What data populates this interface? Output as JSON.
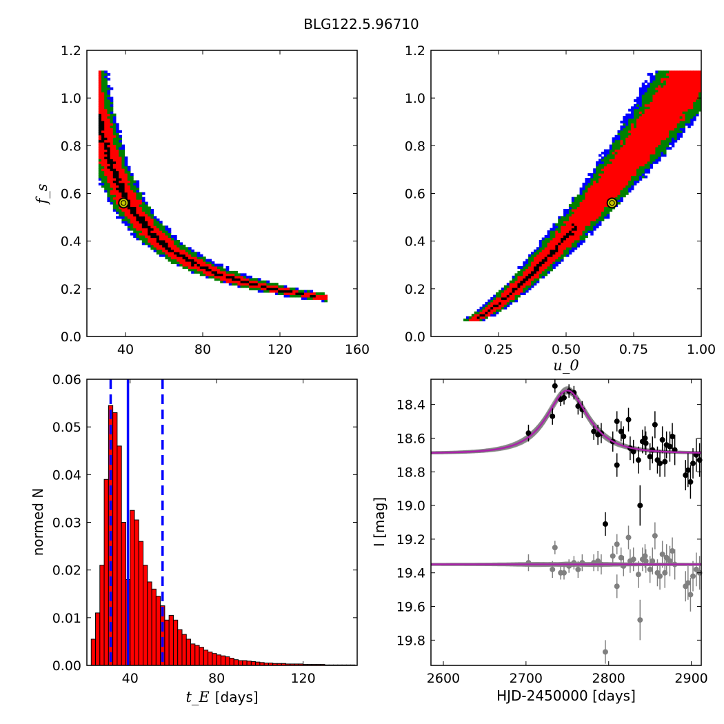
{
  "figure_title": "BLG122.5.96710",
  "colors": {
    "sigma1": "#000000",
    "sigma2": "#ff0000",
    "sigma3": "#008000",
    "sigma4": "#0000ff",
    "best_fit_marker": "#c8c800",
    "histogram_bar": "#ff0000",
    "histogram_edge": "#000000",
    "median_line": "#0000ff",
    "model_curve": "#aa22aa",
    "model_band": "#808080",
    "data_primary": "#000000",
    "data_residual": "#808080"
  },
  "chart_data": [
    {
      "id": "fs-vs-tE",
      "type": "heatmap",
      "xlabel": "",
      "ylabel": "f_s",
      "xlim": [
        20,
        160
      ],
      "ylim": [
        0.0,
        1.2
      ],
      "xticks": [
        "40",
        "80",
        "120",
        "160"
      ],
      "yticks": [
        "0.0",
        "0.2",
        "0.4",
        "0.6",
        "0.8",
        "1.0",
        "1.2"
      ],
      "best_fit": {
        "tE": 39,
        "fs": 0.56
      },
      "curve_tE_fs_product": 22.5,
      "regions": [
        "1-sigma (black)",
        "2-sigma (red)",
        "3-sigma (green)",
        "4-sigma (blue)"
      ]
    },
    {
      "id": "fs-vs-u0",
      "type": "heatmap",
      "xlabel": "u_0",
      "ylabel": "",
      "xlim": [
        0.0,
        1.0
      ],
      "ylim": [
        0.0,
        1.2
      ],
      "xticks": [
        "0.25",
        "0.50",
        "0.75",
        "1.00"
      ],
      "yticks": [
        "0.0",
        "0.2",
        "0.4",
        "0.6",
        "0.8",
        "1.0",
        "1.2"
      ],
      "best_fit": {
        "u0": 0.67,
        "fs": 0.56
      },
      "regions": [
        "1-sigma (black)",
        "2-sigma (red)",
        "3-sigma (green)",
        "4-sigma (blue)"
      ]
    },
    {
      "id": "tE-histogram",
      "type": "bar",
      "xlabel_symbol": "t_E",
      "xlabel_unit": "[days]",
      "ylabel": "normed N",
      "xlim": [
        20,
        145
      ],
      "ylim": [
        0.0,
        0.06
      ],
      "xticks": [
        "40",
        "80",
        "120"
      ],
      "yticks": [
        "0.00",
        "0.01",
        "0.02",
        "0.03",
        "0.04",
        "0.05",
        "0.06"
      ],
      "bin_start": 22,
      "bin_width": 2,
      "values": [
        0.0055,
        0.011,
        0.021,
        0.039,
        0.0545,
        0.053,
        0.046,
        0.03,
        0.018,
        0.0325,
        0.0305,
        0.026,
        0.021,
        0.0175,
        0.016,
        0.0145,
        0.0125,
        0.0095,
        0.0105,
        0.0095,
        0.0075,
        0.0065,
        0.0055,
        0.0045,
        0.0042,
        0.0038,
        0.0032,
        0.0028,
        0.0025,
        0.0022,
        0.002,
        0.0018,
        0.0015,
        0.0012,
        0.001,
        0.001,
        0.0009,
        0.0008,
        0.0007,
        0.0006,
        0.0005,
        0.0005,
        0.0004,
        0.0004,
        0.0004,
        0.0003,
        0.0003,
        0.0003,
        0.0003,
        0.0002,
        0.0002,
        0.0002,
        0.0002,
        0.0002,
        0.0001,
        0.0001,
        0.0001,
        0.0001,
        0.0001,
        0.0001,
        0.0001
      ],
      "median": 39,
      "lower_bound": 31,
      "upper_bound": 55
    },
    {
      "id": "light-curve",
      "type": "scatter",
      "xlabel": "HJD-2450000 [days]",
      "ylabel": "I [mag]",
      "xlim": [
        2585,
        2912
      ],
      "ylim": [
        19.95,
        18.25
      ],
      "xticks": [
        "2600",
        "2700",
        "2800",
        "2900"
      ],
      "yticks": [
        "18.4",
        "18.6",
        "18.8",
        "19.0",
        "19.2",
        "19.4",
        "19.6",
        "19.8"
      ],
      "model": {
        "t0": 2750,
        "tE": 39,
        "u0": 0.67,
        "fs": 0.56,
        "baseline": 18.69
      },
      "residual_baseline": 19.35,
      "series": [
        {
          "name": "",
          "points": [
            [
              2703,
              18.57,
              0.05
            ],
            [
              2732,
              18.47,
              0.05
            ],
            [
              2735,
              18.29,
              0.04
            ],
            [
              2742,
              18.37,
              0.04
            ],
            [
              2746,
              18.36,
              0.04
            ],
            [
              2752,
              18.32,
              0.04
            ],
            [
              2758,
              18.33,
              0.04
            ],
            [
              2763,
              18.41,
              0.05
            ],
            [
              2768,
              18.43,
              0.05
            ],
            [
              2782,
              18.56,
              0.05
            ],
            [
              2787,
              18.58,
              0.06
            ],
            [
              2791,
              18.57,
              0.06
            ],
            [
              2796,
              19.11,
              0.07
            ],
            [
              2805,
              18.62,
              0.06
            ],
            [
              2810,
              18.76,
              0.07
            ],
            [
              2810,
              18.5,
              0.06
            ],
            [
              2815,
              18.56,
              0.06
            ],
            [
              2818,
              18.59,
              0.06
            ],
            [
              2824,
              18.49,
              0.07
            ],
            [
              2826,
              18.66,
              0.07
            ],
            [
              2830,
              18.68,
              0.07
            ],
            [
              2836,
              18.73,
              0.08
            ],
            [
              2838,
              19.0,
              0.12
            ],
            [
              2841,
              18.62,
              0.07
            ],
            [
              2844,
              18.6,
              0.07
            ],
            [
              2845,
              18.63,
              0.07
            ],
            [
              2850,
              18.71,
              0.08
            ],
            [
              2853,
              18.67,
              0.08
            ],
            [
              2856,
              18.52,
              0.08
            ],
            [
              2859,
              18.73,
              0.08
            ],
            [
              2862,
              18.75,
              0.08
            ],
            [
              2865,
              18.61,
              0.08
            ],
            [
              2868,
              18.74,
              0.09
            ],
            [
              2870,
              18.64,
              0.08
            ],
            [
              2874,
              18.65,
              0.09
            ],
            [
              2877,
              18.59,
              0.08
            ],
            [
              2880,
              18.67,
              0.09
            ],
            [
              2893,
              18.82,
              0.09
            ],
            [
              2896,
              18.79,
              0.1
            ],
            [
              2899,
              18.86,
              0.1
            ],
            [
              2902,
              18.75,
              0.09
            ],
            [
              2906,
              18.7,
              0.1
            ],
            [
              2910,
              18.73,
              0.1
            ]
          ]
        },
        {
          "name": "",
          "points": [
            [
              2703,
              19.34,
              0.05
            ],
            [
              2732,
              19.38,
              0.05
            ],
            [
              2735,
              19.25,
              0.04
            ],
            [
              2742,
              19.4,
              0.04
            ],
            [
              2746,
              19.4,
              0.04
            ],
            [
              2752,
              19.36,
              0.04
            ],
            [
              2758,
              19.34,
              0.04
            ],
            [
              2763,
              19.38,
              0.05
            ],
            [
              2768,
              19.34,
              0.05
            ],
            [
              2782,
              19.34,
              0.05
            ],
            [
              2787,
              19.33,
              0.06
            ],
            [
              2791,
              19.35,
              0.06
            ],
            [
              2796,
              19.87,
              0.07
            ],
            [
              2805,
              19.3,
              0.06
            ],
            [
              2810,
              19.48,
              0.07
            ],
            [
              2810,
              19.23,
              0.06
            ],
            [
              2815,
              19.31,
              0.06
            ],
            [
              2818,
              19.36,
              0.06
            ],
            [
              2824,
              19.19,
              0.07
            ],
            [
              2826,
              19.33,
              0.07
            ],
            [
              2830,
              19.32,
              0.07
            ],
            [
              2836,
              19.41,
              0.08
            ],
            [
              2838,
              19.68,
              0.12
            ],
            [
              2841,
              19.32,
              0.07
            ],
            [
              2844,
              19.3,
              0.07
            ],
            [
              2845,
              19.33,
              0.07
            ],
            [
              2850,
              19.38,
              0.08
            ],
            [
              2853,
              19.33,
              0.08
            ],
            [
              2856,
              19.18,
              0.08
            ],
            [
              2859,
              19.4,
              0.08
            ],
            [
              2862,
              19.42,
              0.08
            ],
            [
              2865,
              19.29,
              0.08
            ],
            [
              2868,
              19.4,
              0.09
            ],
            [
              2870,
              19.31,
              0.08
            ],
            [
              2874,
              19.33,
              0.09
            ],
            [
              2877,
              19.27,
              0.08
            ],
            [
              2880,
              19.35,
              0.09
            ],
            [
              2893,
              19.48,
              0.09
            ],
            [
              2896,
              19.46,
              0.1
            ],
            [
              2899,
              19.53,
              0.1
            ],
            [
              2902,
              19.42,
              0.09
            ],
            [
              2906,
              19.38,
              0.1
            ],
            [
              2910,
              19.4,
              0.1
            ]
          ]
        }
      ]
    }
  ]
}
